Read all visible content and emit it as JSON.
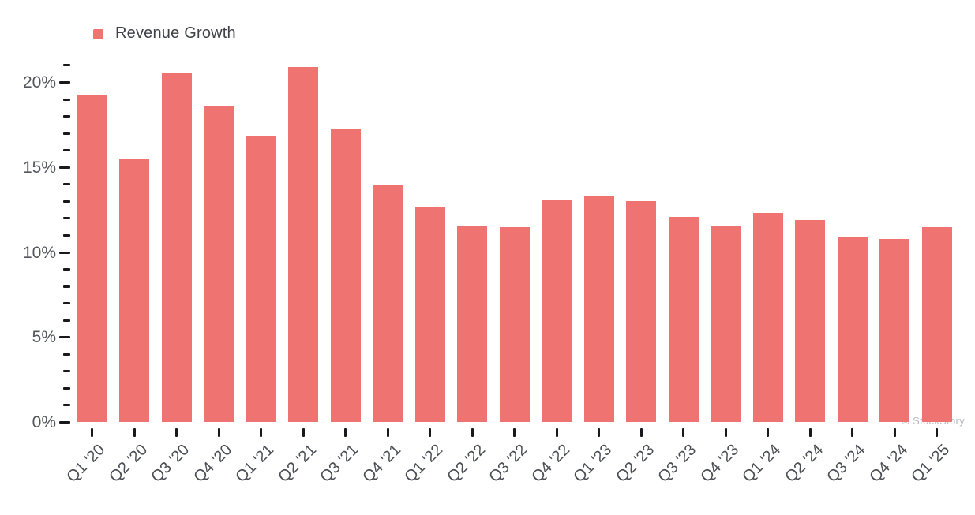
{
  "watermark": "© StockStory",
  "colors": {
    "bar": "#ef7370",
    "tick": "#17191d",
    "y_label_text": "#54575d",
    "x_label_text": "#4b4e54",
    "legend_text": "#3f4248",
    "watermark_text": "#b6bbc3",
    "background": "#ffffff"
  },
  "chart_data": {
    "type": "bar",
    "title": "",
    "legend": "Revenue Growth",
    "legend_position": "top-left",
    "grid": false,
    "xlabel": "",
    "ylabel": "",
    "categories": [
      "Q1 '20",
      "Q2 '20",
      "Q3 '20",
      "Q4 '20",
      "Q1 '21",
      "Q2 '21",
      "Q3 '21",
      "Q4 '21",
      "Q1 '22",
      "Q2 '22",
      "Q3 '22",
      "Q4 '22",
      "Q1 '23",
      "Q2 '23",
      "Q3 '23",
      "Q4 '23",
      "Q1 '24",
      "Q2 '24",
      "Q3 '24",
      "Q4 '24",
      "Q1 '25"
    ],
    "values": [
      19.3,
      15.5,
      20.6,
      18.6,
      16.8,
      20.9,
      17.3,
      14.0,
      12.7,
      11.6,
      11.5,
      13.1,
      13.3,
      13.0,
      12.1,
      11.6,
      12.3,
      11.9,
      10.9,
      10.8,
      11.5
    ],
    "value_unit": "%",
    "y_axis": {
      "min": 0,
      "max": 21,
      "major_ticks": [
        0,
        5,
        10,
        15,
        20
      ],
      "major_tick_labels": [
        "0%",
        "5%",
        "10%",
        "15%",
        "20%"
      ],
      "minor_step": 1
    }
  }
}
